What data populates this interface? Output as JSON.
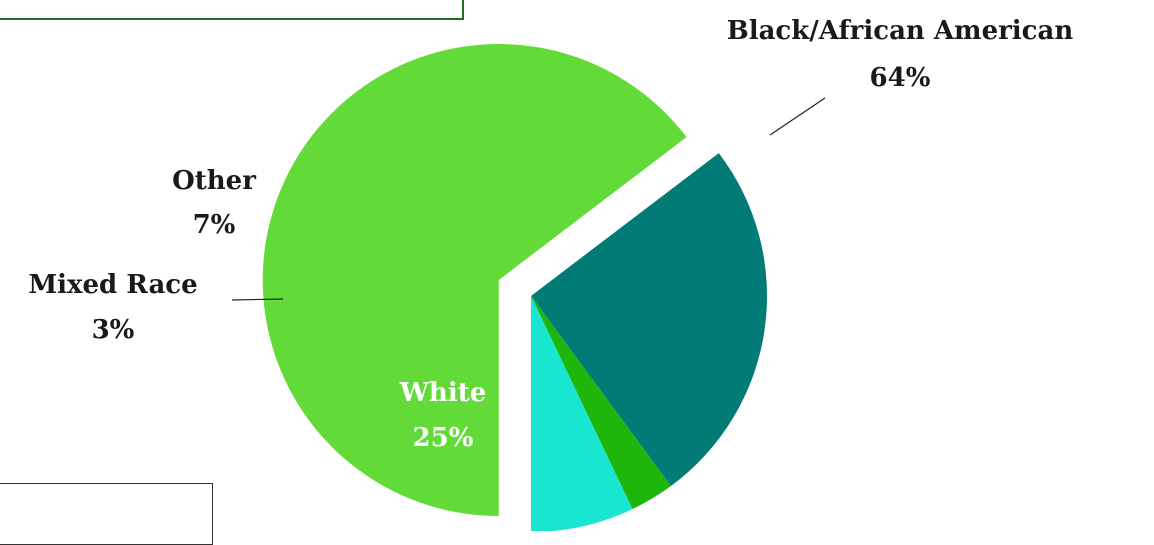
{
  "chart_data": {
    "type": "pie",
    "slices": [
      {
        "name": "Black/African American",
        "value": 64,
        "label": "64%",
        "color": "#62da38",
        "exploded": true
      },
      {
        "name": "White",
        "value": 25,
        "label": "25%",
        "color": "#017b75",
        "exploded": false
      },
      {
        "name": "Mixed Race",
        "value": 3,
        "label": "3%",
        "color": "#1fb60c",
        "exploded": false
      },
      {
        "name": "Other",
        "value": 7,
        "label": "7%",
        "color": "#18e6d1",
        "exploded": false
      }
    ],
    "label_color_dark": "#1a1a1a",
    "label_color_inside": "#ffffff",
    "leader_line_color": "#222222"
  }
}
